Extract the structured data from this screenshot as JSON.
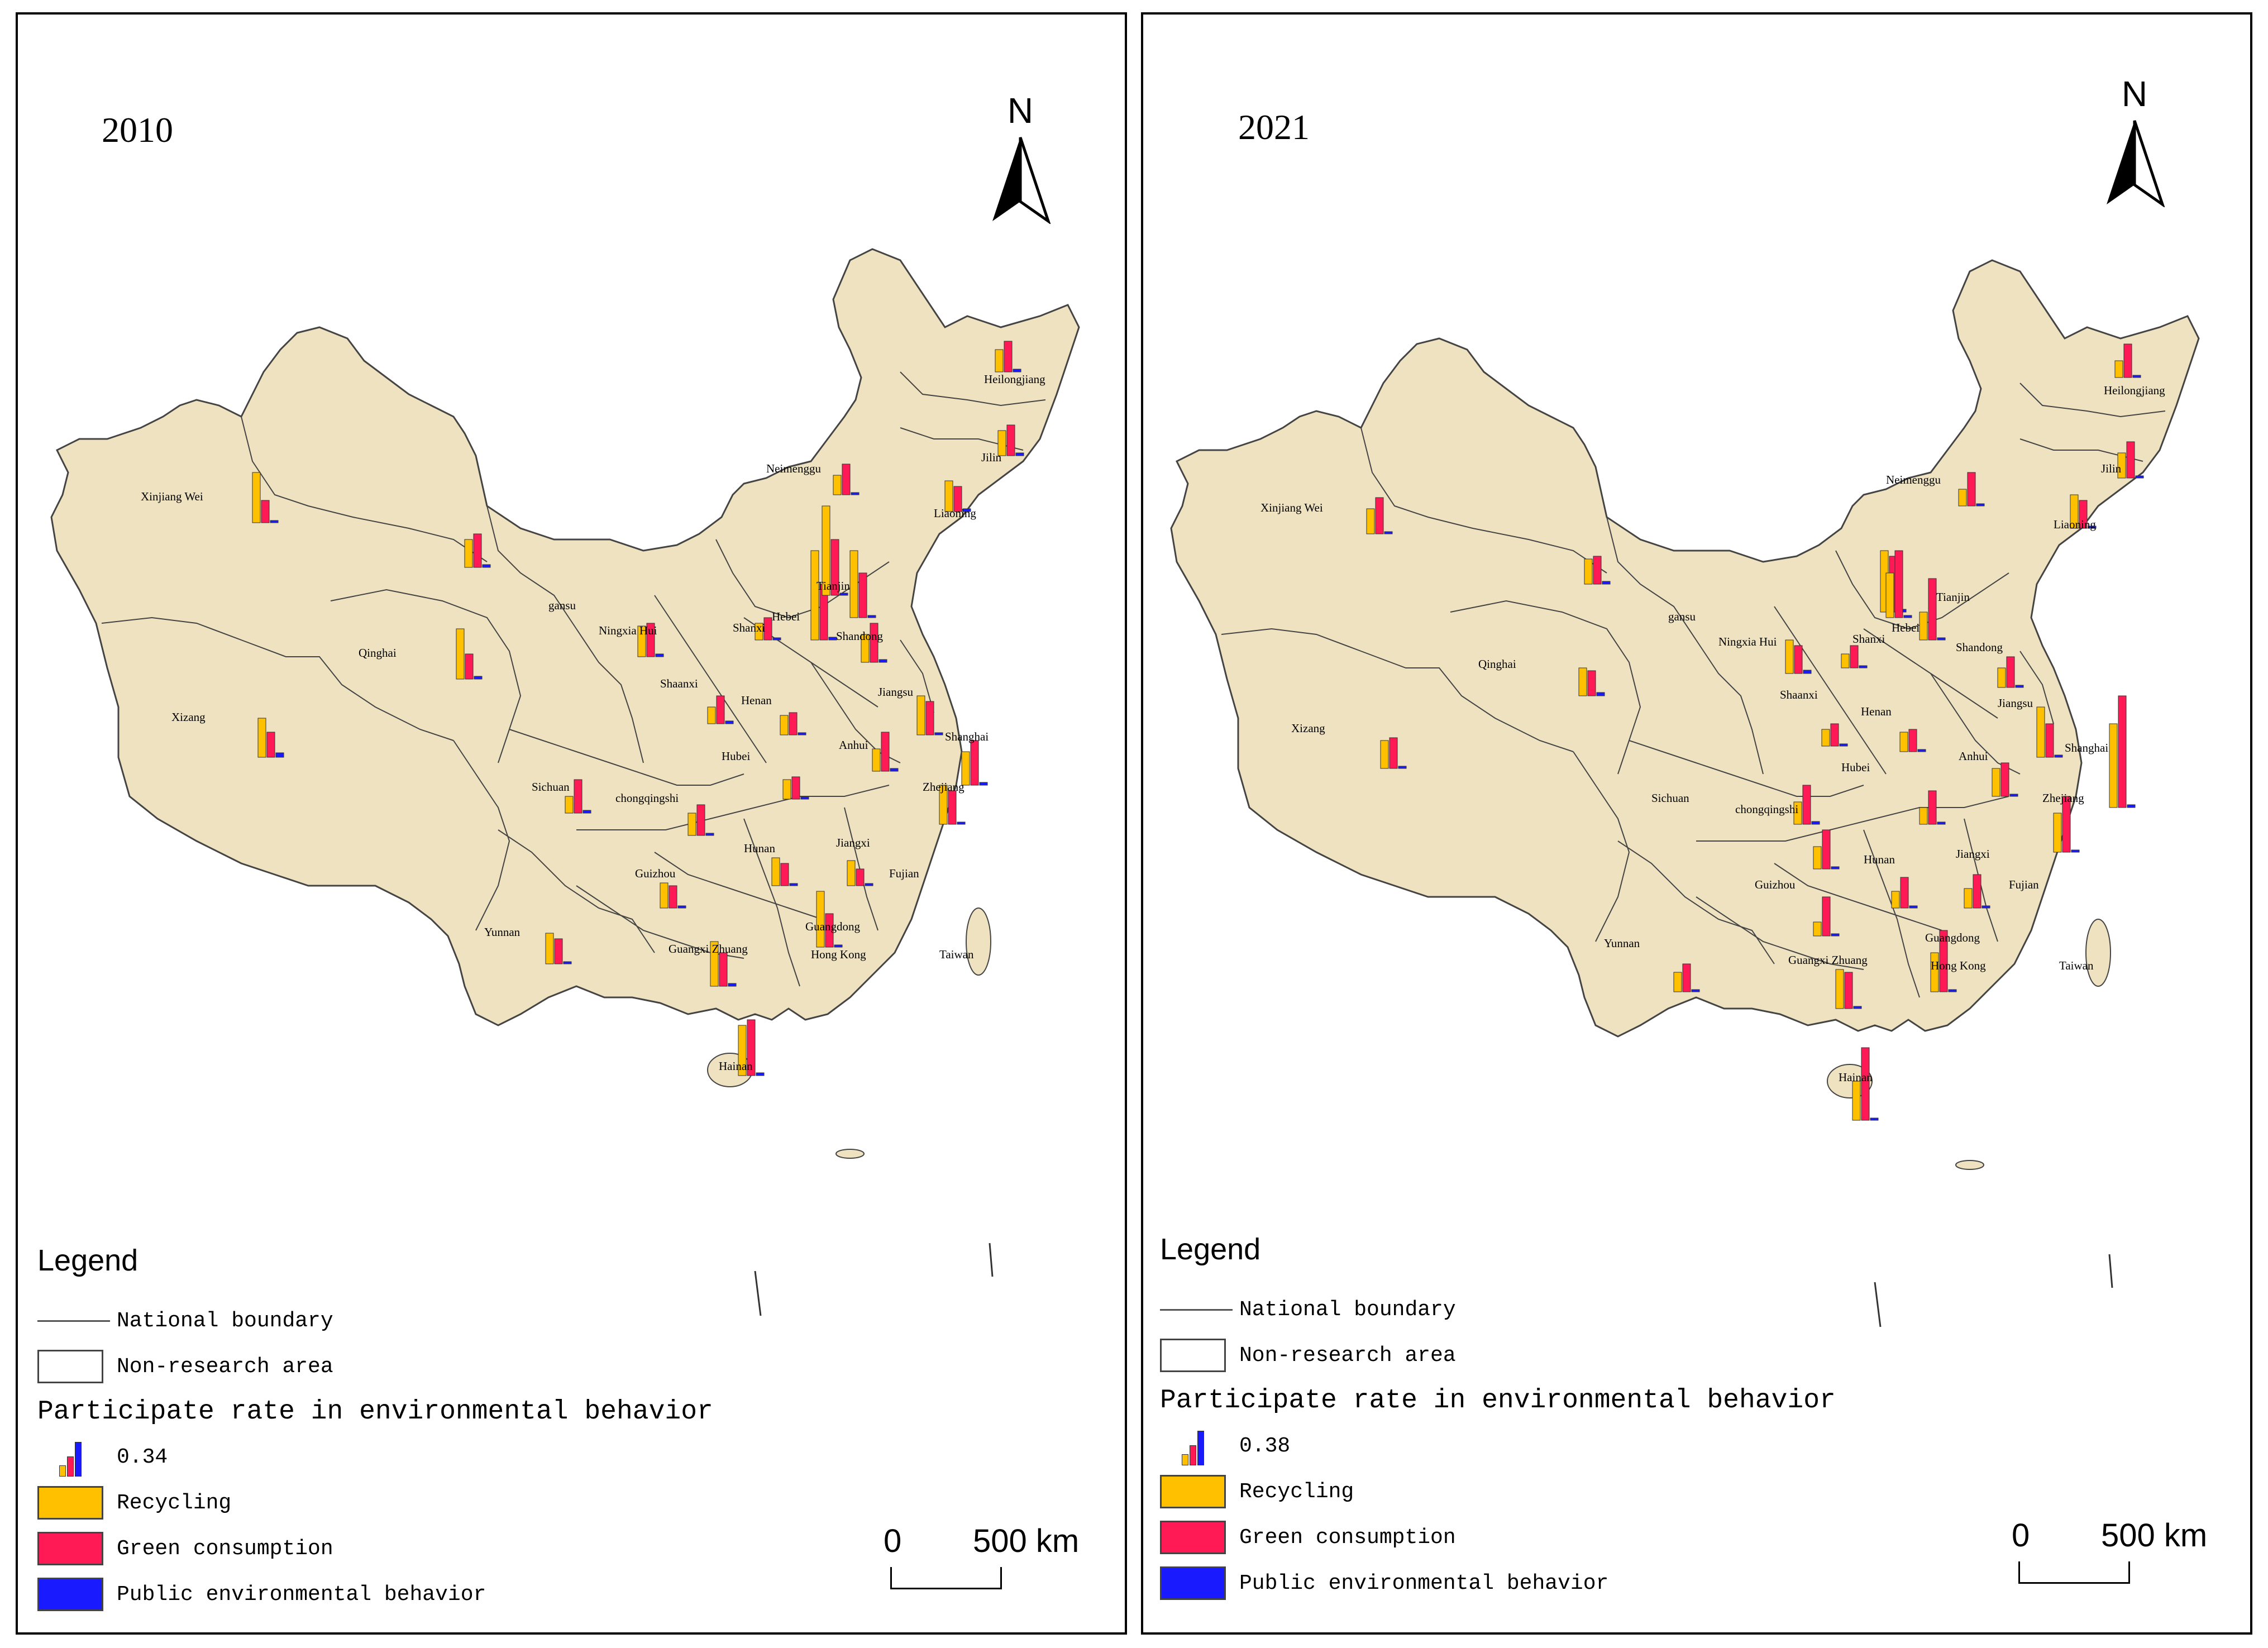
{
  "maps": [
    {
      "year": "2010",
      "legend": {
        "title": "Legend",
        "national_boundary": "National boundary",
        "non_research_area": "Non-research area",
        "heading": "Participate rate in environmental behavior",
        "sample_value": "0.34",
        "recycling": "Recycling",
        "green_consumption": "Green consumption",
        "public_behavior": "Public environmental behavior"
      },
      "north": "N",
      "scale": {
        "zero": "0",
        "distance": "500 km"
      }
    },
    {
      "year": "2021",
      "legend": {
        "title": "Legend",
        "national_boundary": "National boundary",
        "non_research_area": "Non-research area",
        "heading": "Participate rate in environmental behavior",
        "sample_value": "0.38",
        "recycling": "Recycling",
        "green_consumption": "Green consumption",
        "public_behavior": "Public environmental behavior"
      },
      "north": "N",
      "scale": {
        "zero": "0",
        "distance": "500 km"
      }
    }
  ],
  "colors": {
    "land": "#efe2c0",
    "boundary": "#444444",
    "recycling": "#ffc000",
    "green_consumption": "#ff1a55",
    "public_behavior": "#1a1aff"
  },
  "province_labels": [
    "Heilongjiang",
    "Jilin",
    "Liaoning",
    "Neimenggu",
    "Xinjiang Wei",
    "gansu",
    "Qinghai",
    "Xizang",
    "Ningxia Hui",
    "Shaanxi",
    "Shanxi",
    "Hebei",
    "Tianjin",
    "Shandong",
    "Henan",
    "Jiangsu",
    "Shanghai",
    "Anhui",
    "Hubei",
    "Sichuan",
    "chongqingshi",
    "Zhejiang",
    "Hunan",
    "Jiangxi",
    "Fujian",
    "Guizhou",
    "Yunnan",
    "Guangxi Zhuang",
    "Guangdong",
    "Hong Kong",
    "Hainan",
    "Taiwan"
  ]
}
